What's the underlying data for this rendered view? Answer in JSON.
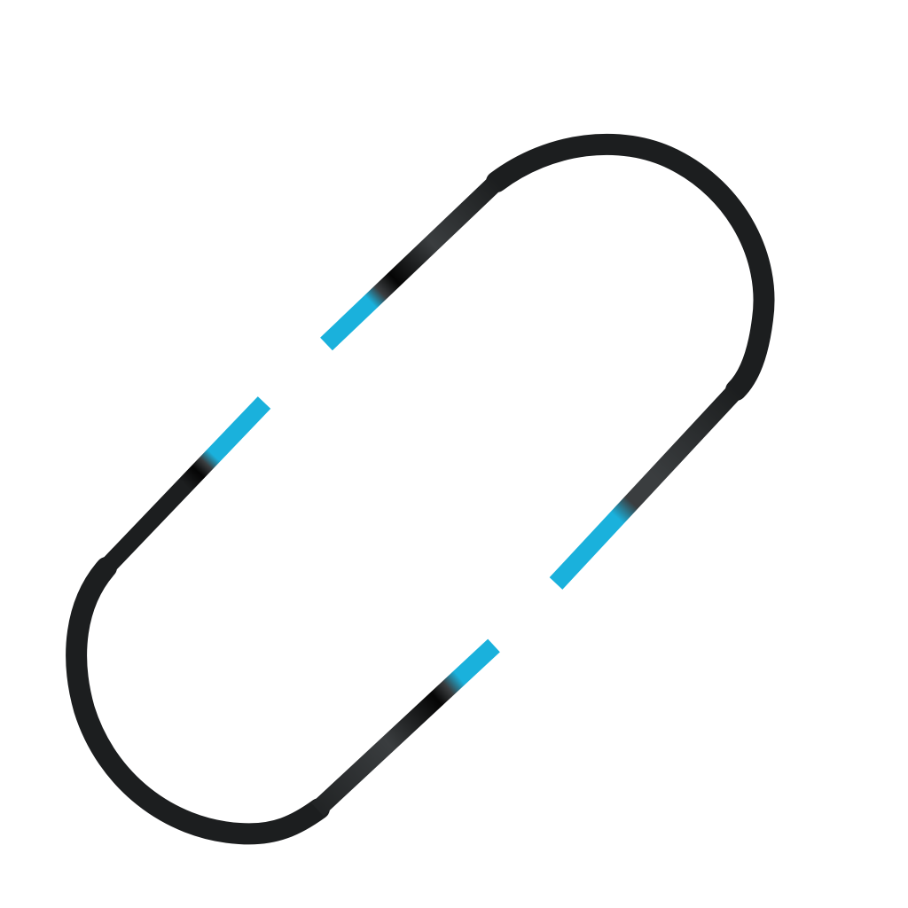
{
  "graphic": {
    "icon": "broken-link-icon",
    "colors": {
      "background": "#ffffff",
      "stroke_dark": "#1c1e1f",
      "stroke_mid": "#3a3d3f",
      "stroke_black": "#050505",
      "accent": "#1ab1dc"
    }
  }
}
